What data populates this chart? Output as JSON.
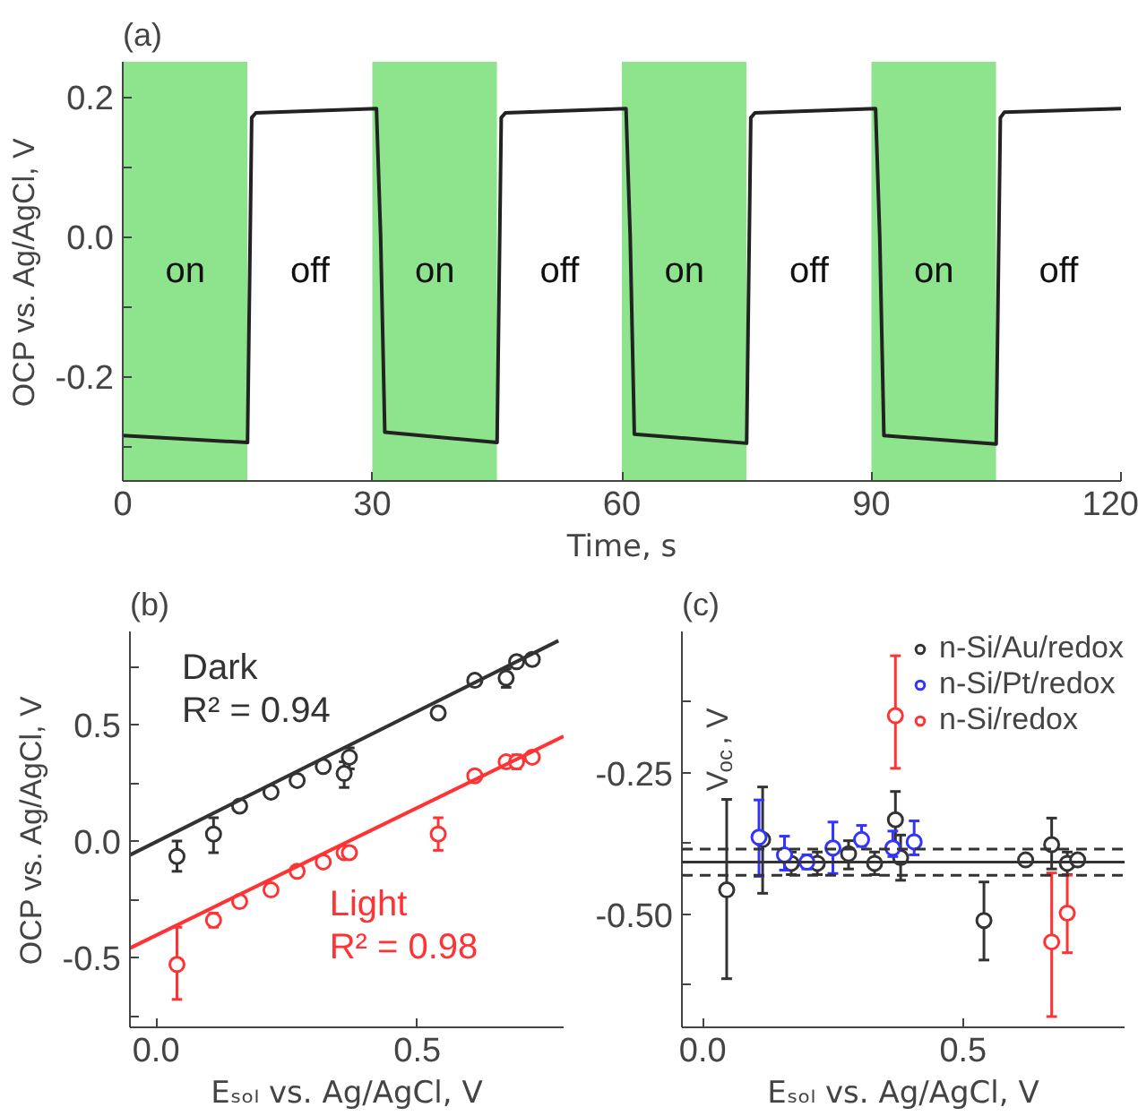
{
  "chart_data": [
    {
      "type": "line",
      "title": "(a)",
      "xlabel": "Time, s",
      "ylabel": "OCP vs. Ag/AgCl, V",
      "xlim": [
        0,
        120
      ],
      "ylim": [
        -0.35,
        0.25
      ],
      "xticks": [
        0,
        30,
        60,
        90,
        120
      ],
      "yticks": [
        {
          "value": -0.3,
          "label": null
        },
        {
          "value": -0.2,
          "label": "-0.2"
        },
        {
          "value": -0.1,
          "label": null
        },
        {
          "value": 0,
          "label": "0.0"
        },
        {
          "value": 0.1,
          "label": null
        },
        {
          "value": 0.2,
          "label": "0.2"
        }
      ],
      "bands": [
        {
          "axis": "x",
          "from": 0,
          "to": 15,
          "color": "#8de48d",
          "label": "on"
        },
        {
          "axis": "x",
          "from": 15,
          "to": 30,
          "color": "#ffffff",
          "label": "off"
        },
        {
          "axis": "x",
          "from": 30,
          "to": 45,
          "color": "#8de48d",
          "label": "on"
        },
        {
          "axis": "x",
          "from": 45,
          "to": 60,
          "color": "#ffffff",
          "label": "off"
        },
        {
          "axis": "x",
          "from": 60,
          "to": 75,
          "color": "#8de48d",
          "label": "on"
        },
        {
          "axis": "x",
          "from": 75,
          "to": 90,
          "color": "#ffffff",
          "label": "off"
        },
        {
          "axis": "x",
          "from": 90,
          "to": 105,
          "color": "#8de48d",
          "label": "on"
        },
        {
          "axis": "x",
          "from": 105,
          "to": 120,
          "color": "#ffffff",
          "label": "off"
        }
      ],
      "series": [
        {
          "color": "#222222",
          "x": [
            0,
            15,
            15.5,
            16,
            30.5,
            31,
            31.5,
            45,
            45.5,
            46,
            60.5,
            61,
            61.5,
            75,
            75.5,
            76,
            90.5,
            91,
            91.5,
            105,
            105.5,
            106,
            120
          ],
          "values": [
            -0.285,
            -0.295,
            0.17,
            0.177,
            0.183,
            0.0,
            -0.28,
            -0.295,
            0.17,
            0.177,
            0.183,
            0.0,
            -0.283,
            -0.296,
            0.17,
            0.177,
            0.183,
            0.0,
            -0.285,
            -0.297,
            0.17,
            0.178,
            0.183
          ]
        }
      ],
      "grid": false,
      "legend": false
    },
    {
      "type": "scatter",
      "title": "(b)",
      "xlabel": "Eₛₒₗ vs. Ag/AgCl, V",
      "ylabel": "OCP vs. Ag/AgCl, V",
      "xlim": [
        -0.05,
        0.78
      ],
      "ylim": [
        -0.8,
        0.9
      ],
      "xticks": [
        {
          "value": 0,
          "label": "0.0"
        },
        0.5
      ],
      "yticks": [
        {
          "value": -0.75,
          "label": null
        },
        -0.5,
        {
          "value": -0.25,
          "label": null
        },
        {
          "value": 0,
          "label": "0.0"
        },
        {
          "value": 0.25,
          "label": null
        },
        0.5,
        {
          "value": 0.75,
          "label": null
        }
      ],
      "grid": false,
      "legend": false,
      "series": [
        {
          "color": "#333333",
          "marker": "circle",
          "x": [
            0.04,
            0.11,
            0.16,
            0.22,
            0.27,
            0.32,
            0.36,
            0.37,
            0.54,
            0.61,
            0.67,
            0.69,
            0.72
          ],
          "values": [
            -0.066,
            0.03,
            0.15,
            0.21,
            0.26,
            0.32,
            0.29,
            0.36,
            0.55,
            0.69,
            0.7,
            0.77,
            0.78
          ],
          "errors": [
            [
              -0.13,
              0.0
            ],
            [
              -0.05,
              0.1
            ],
            null,
            null,
            null,
            null,
            [
              0.23,
              0.34
            ],
            [
              0.31,
              0.4
            ],
            null,
            null,
            [
              0.66,
              0.74
            ],
            null,
            null
          ]
        },
        {
          "color": "#ff3333",
          "marker": "circle",
          "x": [
            0.04,
            0.11,
            0.16,
            0.22,
            0.27,
            0.32,
            0.36,
            0.37,
            0.54,
            0.61,
            0.67,
            0.69,
            0.72
          ],
          "values": [
            -0.53,
            -0.34,
            -0.26,
            -0.21,
            -0.13,
            -0.09,
            -0.05,
            -0.05,
            0.03,
            0.28,
            0.34,
            0.34,
            0.36
          ],
          "errors": [
            [
              -0.68,
              -0.37
            ],
            [
              -0.37,
              -0.31
            ],
            null,
            null,
            null,
            null,
            null,
            null,
            [
              -0.04,
              0.1
            ],
            null,
            null,
            [
              0.31,
              0.37
            ],
            null
          ]
        },
        {
          "type": "line",
          "name": "Dark",
          "color": "#333333",
          "x": [
            -0.05,
            0.77
          ],
          "values": [
            -0.06,
            0.86
          ]
        },
        {
          "type": "line",
          "name": "Light",
          "color": "#ff3333",
          "x": [
            -0.05,
            0.78
          ],
          "values": [
            -0.46,
            0.45
          ]
        }
      ],
      "annotations": [
        "R² = 0.94",
        "R² = 0.98"
      ]
    },
    {
      "type": "scatter",
      "title": "(c)",
      "xlabel": "Eₛₒₗ vs. Ag/AgCl, V",
      "ylabel": "V$_{oc}$, V",
      "xlim": [
        -0.04,
        0.81
      ],
      "ylim": [
        -0.7,
        0.0
      ],
      "xticks": [
        {
          "value": 0,
          "label": "0.0"
        },
        0.5
      ],
      "yticks": [
        {
          "value": -0.625,
          "label": null
        },
        {
          "value": -0.5,
          "label": "-0.50"
        },
        {
          "value": -0.375,
          "label": null
        },
        -0.25,
        {
          "value": -0.125,
          "label": null
        }
      ],
      "marker": "circle",
      "grid": false,
      "legend": "top right",
      "series": [
        {
          "name": "n-Si/Au/redox",
          "color": "#333333",
          "x": [
            0.046,
            0.115,
            0.17,
            0.22,
            0.28,
            0.33,
            0.37,
            0.38,
            0.54,
            0.62,
            0.67,
            0.7,
            0.72
          ],
          "values": [
            -0.457,
            -0.368,
            -0.41,
            -0.41,
            -0.393,
            -0.41,
            -0.333,
            -0.4,
            -0.511,
            -0.404,
            -0.377,
            -0.41,
            -0.404
          ],
          "errors": [
            [
              -0.614,
              -0.297
            ],
            [
              -0.463,
              -0.275
            ],
            [
              -0.43,
              -0.39
            ],
            [
              -0.43,
              -0.39
            ],
            [
              -0.42,
              -0.37
            ],
            [
              -0.43,
              -0.39
            ],
            [
              -0.385,
              -0.283
            ],
            [
              -0.44,
              -0.36
            ],
            [
              -0.581,
              -0.443
            ],
            null,
            [
              -0.42,
              -0.33
            ],
            [
              -0.43,
              -0.39
            ],
            null
          ]
        },
        {
          "name": "n-Si/Pt/redox",
          "color": "#3333ff",
          "x": [
            0.108,
            0.157,
            0.2,
            0.25,
            0.305,
            0.365,
            0.406
          ],
          "values": [
            -0.364,
            -0.395,
            -0.408,
            -0.383,
            -0.368,
            -0.383,
            -0.372
          ],
          "errors": [
            [
              -0.433,
              -0.298
            ],
            [
              -0.422,
              -0.362
            ],
            [
              -0.42,
              -0.395
            ],
            [
              -0.428,
              -0.337
            ],
            [
              -0.38,
              -0.343
            ],
            [
              -0.398,
              -0.353
            ],
            [
              -0.395,
              -0.335
            ]
          ]
        },
        {
          "name": "n-Si/redox",
          "color": "#ff3333",
          "x": [
            0.37,
            0.67,
            0.7
          ],
          "values": [
            -0.149,
            -0.549,
            -0.498
          ],
          "errors": [
            [
              -0.242,
              -0.043
            ],
            [
              -0.681,
              -0.427
            ],
            [
              -0.568,
              -0.431
            ]
          ]
        }
      ],
      "ref_lines": [
        {
          "axis": "y",
          "value": -0.408,
          "color": "#333333",
          "line_style": "solid"
        },
        {
          "axis": "y",
          "value": -0.385,
          "color": "#333333",
          "line_style": "dashed"
        },
        {
          "axis": "y",
          "value": -0.431,
          "color": "#333333",
          "line_style": "dashed"
        }
      ]
    }
  ]
}
